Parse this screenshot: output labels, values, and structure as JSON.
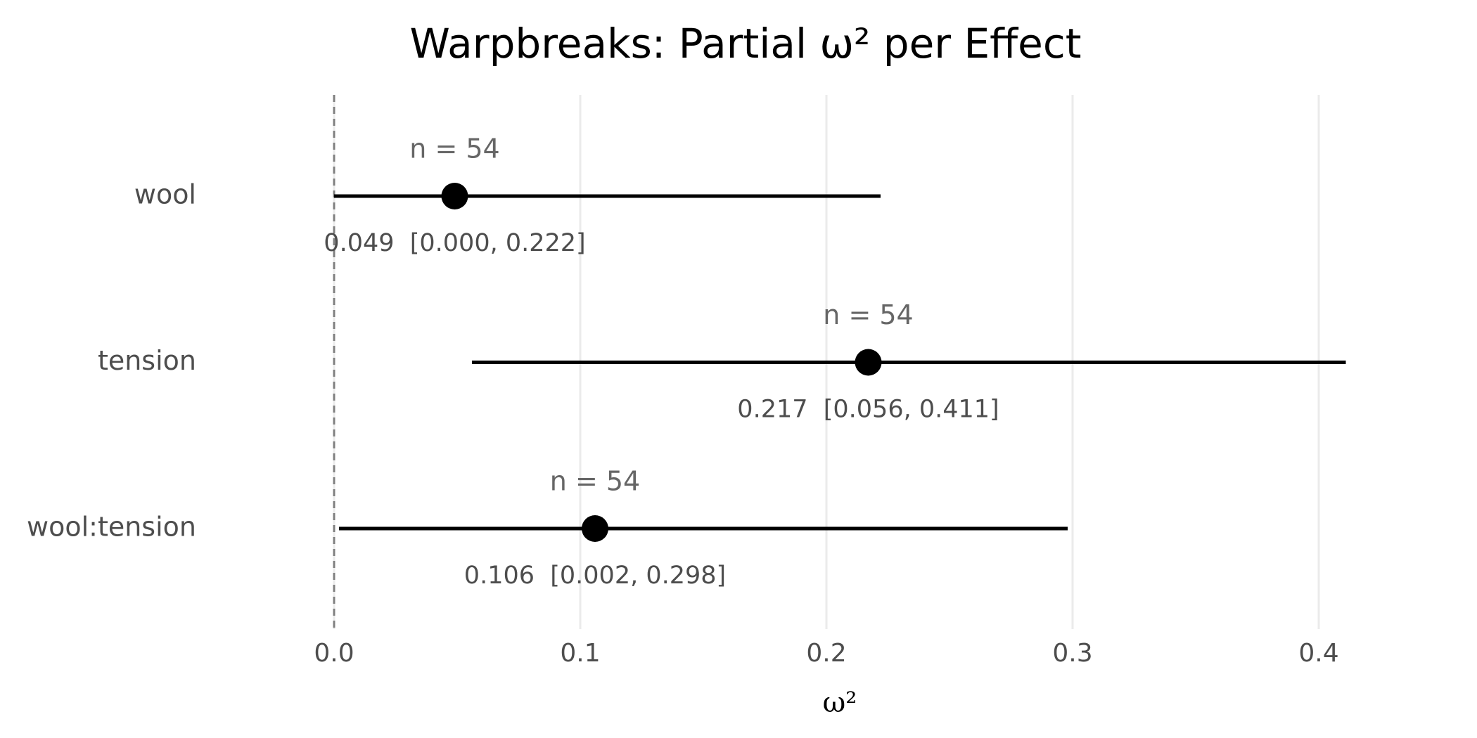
{
  "chart_data": {
    "type": "forest",
    "title": "Warpbreaks: Partial ω² per Effect",
    "x_label": "ω²",
    "categories": [
      "wool",
      "tension",
      "wool:tension"
    ],
    "values": [
      0.049,
      0.217,
      0.106
    ],
    "lower": [
      0.0,
      0.056,
      0.002
    ],
    "upper": [
      0.222,
      0.411,
      0.298
    ],
    "value_labels": [
      "0.049  [0.000, 0.222]",
      "0.217  [0.056, 0.411]",
      "0.106  [0.002, 0.298]"
    ],
    "n_labels": [
      "n = 54",
      "n = 54",
      "n = 54"
    ],
    "color": "#000000",
    "xlim": [
      -0.05,
      0.45
    ],
    "xticks": [
      {
        "value": 0,
        "label": "0.0"
      },
      0.1,
      0.2,
      0.3,
      0.4
    ],
    "reference_line": 0,
    "grid": true
  }
}
